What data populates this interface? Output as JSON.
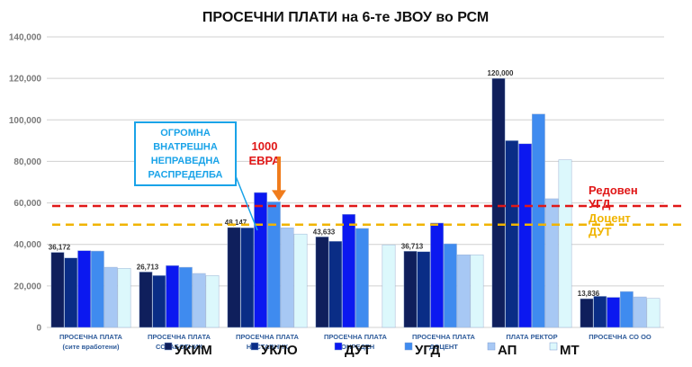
{
  "chart_data": {
    "type": "bar",
    "title": "ПРОСЕЧНИ ПЛАТИ на 6-те ЈВОУ во РСМ",
    "ylim": [
      0,
      140000
    ],
    "yticks": [
      "0",
      "20,000",
      "40,000",
      "60,000",
      "80,000",
      "100,000",
      "120,000",
      "140,000"
    ],
    "grid": true,
    "legend_position": "bottom",
    "categories": [
      [
        "ПРОСЕЧНА ПЛАТА",
        "(сите вработени)"
      ],
      [
        "ПРОСЕЧНА ПЛАТА",
        "СОРАБОТНИК"
      ],
      [
        "ПРОСЕЧНА ПЛАТА",
        "НАСТАВНИК"
      ],
      [
        "ПРОСЕЧНА ПЛАТА",
        "ВОНРЕДЕН"
      ],
      [
        "ПРОСЕЧНА ПЛАТА",
        "ДОЦЕНТ"
      ],
      [
        "ПЛАТА РЕКТОР"
      ],
      [
        "ПРОСЕЧНА СО ОО"
      ]
    ],
    "series": [
      {
        "name": "УКИМ",
        "color": "#0f1f5c",
        "values": [
          36172,
          26713,
          48147,
          43633,
          36713,
          120000,
          13836
        ]
      },
      {
        "name": "УКЛО",
        "color": "#0a2d86",
        "values": [
          33500,
          25000,
          48000,
          41500,
          36500,
          90000,
          15000
        ]
      },
      {
        "name": "ДУТ",
        "color": "#0b18f0",
        "values": [
          37000,
          29800,
          65000,
          54500,
          50300,
          88500,
          14500
        ]
      },
      {
        "name": "УГД",
        "color": "#3f8bef",
        "values": [
          36800,
          29000,
          60500,
          47700,
          40300,
          102800,
          17300
        ]
      },
      {
        "name": "АП",
        "color": "#a7c8f4",
        "values": [
          29000,
          26000,
          48000,
          0,
          35000,
          62000,
          14700
        ]
      },
      {
        "name": "МТ",
        "color": "#dcf8fc",
        "values": [
          28500,
          25000,
          45000,
          39800,
          35000,
          80800,
          14000
        ]
      }
    ],
    "data_labels": [
      {
        "category": 0,
        "text": "36,172"
      },
      {
        "category": 1,
        "text": "26,713"
      },
      {
        "category": 2,
        "text": "48,147"
      },
      {
        "category": 3,
        "text": "43,633"
      },
      {
        "category": 4,
        "text": "36,713"
      },
      {
        "category": 5,
        "text": "120,000"
      },
      {
        "category": 6,
        "text": "13,836"
      }
    ],
    "reference_lines": [
      {
        "value": 58500,
        "color": "#e01818",
        "label": [
          "Редовен",
          "УГД"
        ]
      },
      {
        "value": 49500,
        "color": "#f0b400",
        "label": [
          "Доцент",
          "ДУТ"
        ]
      }
    ],
    "annotations": {
      "callout": {
        "lines": [
          "ОГРОМНА",
          "ВНАТРЕШНА",
          "НЕПРАВЕДНА",
          "РАСПРЕДЕЛБА"
        ],
        "color": "#1aa3e8"
      },
      "euro_note": {
        "lines": [
          "1000",
          "ЕВРА"
        ],
        "color": "#e01818",
        "value": 60500
      },
      "arrow_color": "#f07c1c"
    }
  }
}
